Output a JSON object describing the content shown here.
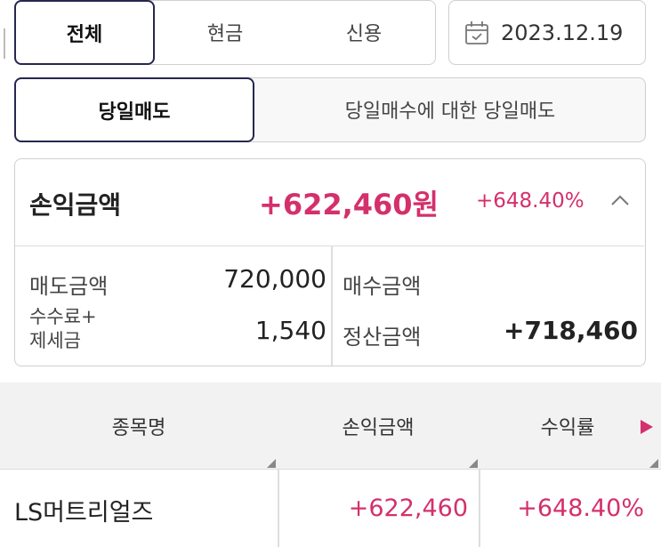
{
  "filter_tabs": {
    "all": "전체",
    "cash": "현금",
    "credit": "신용"
  },
  "date": {
    "value": "2023.12.19",
    "icon": "calendar-icon"
  },
  "sell_tabs": {
    "same_day_sell": "당일매도",
    "same_day_buy_sell": "당일매수에 대한 당일매도"
  },
  "summary": {
    "title": "손익금액",
    "profit": "+622,460원",
    "rate": "+648.40%",
    "sell_amount_label": "매도금액",
    "sell_amount": "720,000",
    "fee_label_line1": "수수료+",
    "fee_label_line2": "제세금",
    "fee": "1,540",
    "buy_amount_label": "매수금액",
    "buy_amount": "",
    "settle_label": "정산금액",
    "settle": "+718,460"
  },
  "table": {
    "columns": [
      "종목명",
      "손익금액",
      "수익률"
    ],
    "rows": [
      {
        "name": "LS머트리얼즈",
        "profit": "+622,460",
        "rate": "+648.40%"
      }
    ]
  },
  "colors": {
    "accent": "#d4306b",
    "selected_border": "#262650"
  }
}
